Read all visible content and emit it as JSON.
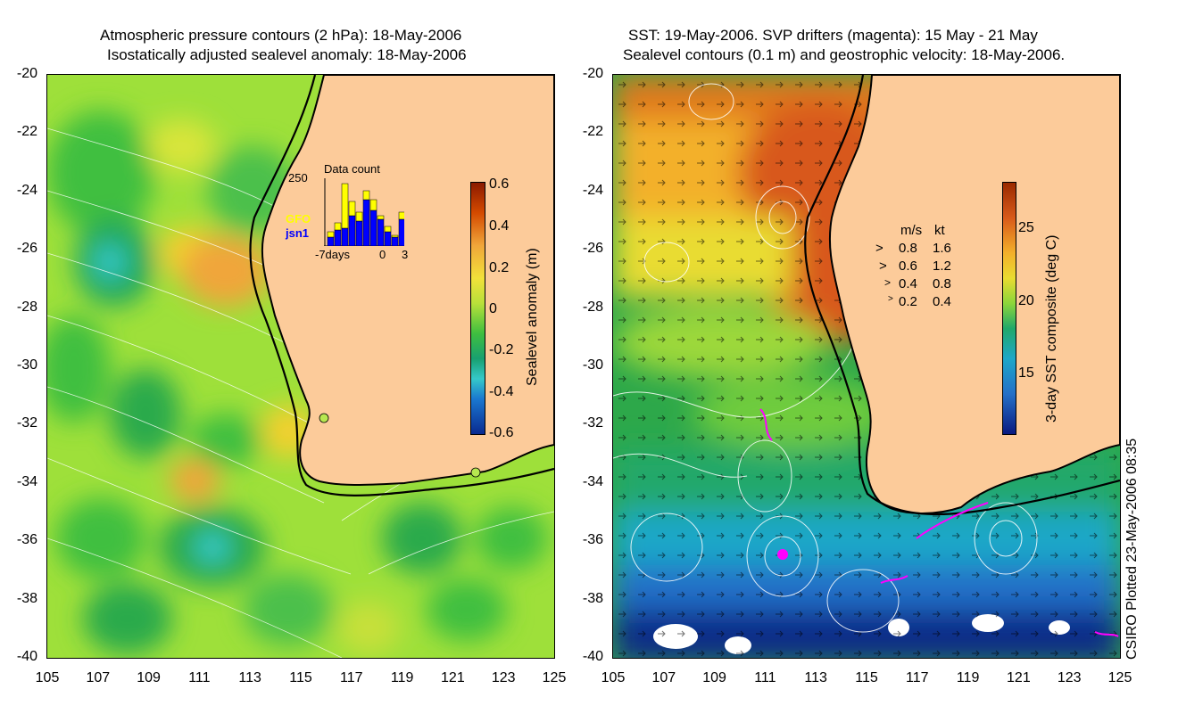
{
  "left_panel": {
    "title_line1": "Atmospheric pressure contours (2 hPa): 18-May-2006",
    "title_line2": "Isostatically adjusted sealevel anomaly: 18-May-2006",
    "colorbar": {
      "label": "Sealevel anomaly (m)",
      "ticks": [
        "0.6",
        "0.4",
        "0.2",
        "0",
        "-0.2",
        "-0.4",
        "-0.6"
      ]
    },
    "inset": {
      "title": "Data count",
      "ymax_label": "250",
      "series1": "GFO",
      "series2": "jsn1",
      "x_left": "-7days",
      "x_mid": "0",
      "x_right": "3",
      "series1_color": "#ffff00",
      "series2_color": "#0000ff"
    }
  },
  "right_panel": {
    "title_line1": "SST: 19-May-2006. SVP drifters (magenta): 15 May - 21 May",
    "title_line2": "Sealevel contours (0.1 m) and geostrophic velocity: 18-May-2006.",
    "colorbar": {
      "label": "3-day SST composite (deg C)",
      "ticks": [
        "25",
        "20",
        "15"
      ]
    },
    "velocity_legend": {
      "header_ms": "m/s",
      "header_kt": "kt",
      "rows": [
        {
          "ms": "0.8",
          "kt": "1.6"
        },
        {
          "ms": "0.6",
          "kt": "1.2"
        },
        {
          "ms": "0.4",
          "kt": "0.8"
        },
        {
          "ms": "0.2",
          "kt": "0.4"
        }
      ]
    }
  },
  "axes": {
    "y_ticks": [
      "-20",
      "-22",
      "-24",
      "-26",
      "-28",
      "-30",
      "-32",
      "-34",
      "-36",
      "-38",
      "-40"
    ],
    "x_ticks": [
      "105",
      "107",
      "109",
      "111",
      "113",
      "115",
      "117",
      "119",
      "121",
      "123",
      "125"
    ]
  },
  "credit": "CSIRO Plotted 23-May-2006 08:35",
  "colors": {
    "land": "#fccb9a",
    "drifter": "#ff00ff"
  }
}
